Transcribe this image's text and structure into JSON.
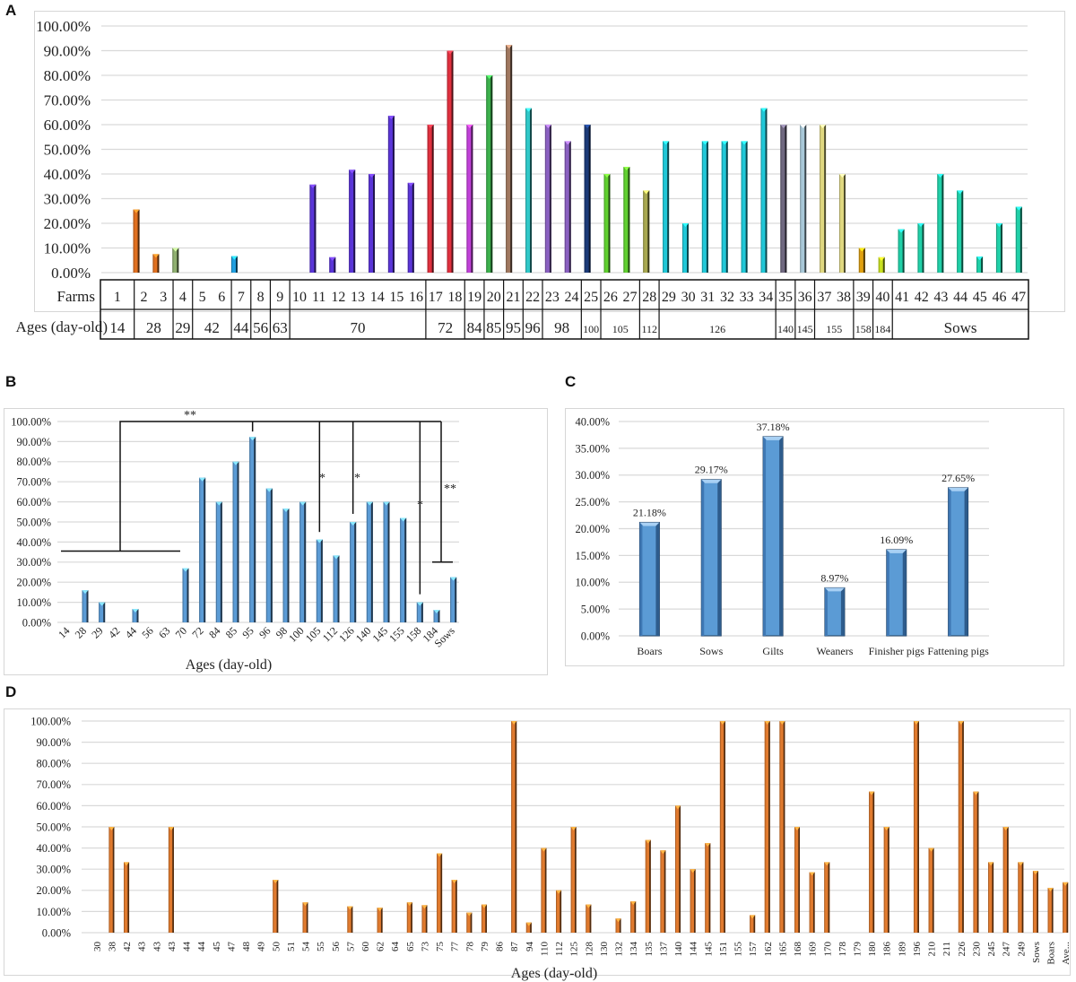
{
  "panels": {
    "A": {
      "letter": "A"
    },
    "B": {
      "letter": "B"
    },
    "C": {
      "letter": "C"
    },
    "D": {
      "letter": "D"
    }
  },
  "chart_data": [
    {
      "id": "A",
      "type": "bar",
      "title": "",
      "ylabel": "",
      "ylim": [
        0,
        100
      ],
      "yticks": [
        "0.00%",
        "10.00%",
        "20.00%",
        "30.00%",
        "40.00%",
        "50.00%",
        "60.00%",
        "70.00%",
        "80.00%",
        "90.00%",
        "100.00%"
      ],
      "grid": true,
      "table_row_labels": [
        "Farms",
        "Ages (day-old)"
      ],
      "categories": [
        "1",
        "2",
        "3",
        "4",
        "5",
        "6",
        "7",
        "8",
        "9",
        "10",
        "11",
        "12",
        "13",
        "14",
        "15",
        "16",
        "17",
        "18",
        "19",
        "20",
        "21",
        "22",
        "23",
        "24",
        "25",
        "26",
        "27",
        "28",
        "29",
        "30",
        "31",
        "32",
        "33",
        "34",
        "35",
        "36",
        "37",
        "38",
        "39",
        "40",
        "41",
        "42",
        "43",
        "44",
        "45",
        "46",
        "47"
      ],
      "values": [
        0,
        25.6,
        7.5,
        10,
        0,
        0,
        6.7,
        0,
        0,
        0,
        35.7,
        6.25,
        41.7,
        40,
        63.6,
        36.4,
        60,
        90,
        60,
        80,
        92.3,
        66.7,
        60,
        53.3,
        60,
        40,
        42.9,
        33.3,
        53.3,
        20,
        53.3,
        53.3,
        53.3,
        66.7,
        60,
        60,
        60,
        40,
        10,
        6.25,
        17.6,
        20,
        40,
        33.3,
        6.5,
        20,
        26.7
      ],
      "age_groups": [
        {
          "label": "14",
          "farms": [
            1,
            1
          ],
          "color": "#e07020"
        },
        {
          "label": "28",
          "farms": [
            2,
            3
          ],
          "color": "#e07020"
        },
        {
          "label": "29",
          "farms": [
            4,
            4
          ],
          "color": "#8fb070"
        },
        {
          "label": "42",
          "farms": [
            5,
            6
          ],
          "color": "#e07020"
        },
        {
          "label": "44",
          "farms": [
            7,
            7
          ],
          "color": "#1f9fe0"
        },
        {
          "label": "56",
          "farms": [
            8,
            8
          ],
          "color": "#1f9fe0"
        },
        {
          "label": "63",
          "farms": [
            9,
            9
          ],
          "color": "#1f9fe0"
        },
        {
          "label": "70",
          "farms": [
            10,
            16
          ],
          "color": "#5a35d8"
        },
        {
          "label": "72",
          "farms": [
            17,
            18
          ],
          "color": "#e0303e"
        },
        {
          "label": "84",
          "farms": [
            19,
            19
          ],
          "color": "#c040d8"
        },
        {
          "label": "85",
          "farms": [
            20,
            20
          ],
          "color": "#3cb04c"
        },
        {
          "label": "95",
          "farms": [
            21,
            21
          ],
          "color": "#a07860"
        },
        {
          "label": "96",
          "farms": [
            22,
            22
          ],
          "color": "#30c8c8"
        },
        {
          "label": "98",
          "farms": [
            23,
            24
          ],
          "color": "#8a60c0"
        },
        {
          "label": "100",
          "farms": [
            25,
            25
          ],
          "color": "#1c3a78"
        },
        {
          "label": "105",
          "farms": [
            26,
            27
          ],
          "color": "#60d030"
        },
        {
          "label": "112",
          "farms": [
            28,
            28
          ],
          "color": "#a8a850"
        },
        {
          "label": "126",
          "farms": [
            29,
            34
          ],
          "color": "#20c8d8"
        },
        {
          "label": "140",
          "farms": [
            35,
            35
          ],
          "color": "#706880"
        },
        {
          "label": "145",
          "farms": [
            36,
            36
          ],
          "color": "#a8c8d8"
        },
        {
          "label": "155",
          "farms": [
            37,
            38
          ],
          "color": "#e0d880"
        },
        {
          "label": "158",
          "farms": [
            39,
            39
          ],
          "color": "#e0a010"
        },
        {
          "label": "184",
          "farms": [
            40,
            40
          ],
          "color": "#c8e020"
        },
        {
          "label": "Sows",
          "farms": [
            41,
            47
          ],
          "color": "#20d0a8"
        }
      ]
    },
    {
      "id": "B",
      "type": "bar",
      "title": "",
      "xlabel": "Ages (day-old)",
      "ylabel": "",
      "ylim": [
        0,
        100
      ],
      "yticks": [
        "0.00%",
        "10.00%",
        "20.00%",
        "30.00%",
        "40.00%",
        "50.00%",
        "60.00%",
        "70.00%",
        "80.00%",
        "90.00%",
        "100.00%"
      ],
      "grid": true,
      "color": "#5b9bd5",
      "categories": [
        "14",
        "28",
        "29",
        "42",
        "44",
        "56",
        "63",
        "70",
        "72",
        "84",
        "85",
        "95",
        "96",
        "98",
        "100",
        "105",
        "112",
        "126",
        "140",
        "145",
        "155",
        "158",
        "184",
        "Sows"
      ],
      "values": [
        0,
        16,
        10,
        0,
        6.7,
        0,
        0,
        27,
        72,
        60,
        80,
        92.3,
        66.7,
        56.7,
        60,
        41.3,
        33.3,
        50,
        60,
        60,
        52,
        10,
        6.25,
        22.5
      ],
      "annotations": [
        {
          "text": "**",
          "note": "14-70 group vs 95"
        },
        {
          "text": "*",
          "note": "95 vs 105"
        },
        {
          "text": "*",
          "note": "95 vs 126"
        },
        {
          "text": "*",
          "note": "95 vs 158"
        },
        {
          "text": "**",
          "note": "95 vs Sows"
        }
      ]
    },
    {
      "id": "C",
      "type": "bar",
      "title": "",
      "ylim": [
        0,
        40
      ],
      "yticks": [
        "0.00%",
        "5.00%",
        "10.00%",
        "15.00%",
        "20.00%",
        "25.00%",
        "30.00%",
        "35.00%",
        "40.00%"
      ],
      "grid": true,
      "color": "#5b9bd5",
      "categories": [
        "Boars",
        "Sows",
        "Gilts",
        "Weaners",
        "Finisher pigs",
        "Fattening pigs"
      ],
      "values": [
        21.18,
        29.17,
        37.18,
        8.97,
        16.09,
        27.65
      ],
      "data_labels": [
        "21.18%",
        "29.17%",
        "37.18%",
        "8.97%",
        "16.09%",
        "27.65%"
      ]
    },
    {
      "id": "D",
      "type": "bar",
      "title": "",
      "xlabel": "Ages (day-old)",
      "ylim": [
        0,
        100
      ],
      "yticks": [
        "0.00%",
        "10.00%",
        "20.00%",
        "30.00%",
        "40.00%",
        "50.00%",
        "60.00%",
        "70.00%",
        "80.00%",
        "90.00%",
        "100.00%"
      ],
      "grid": true,
      "color": "#e07a2e",
      "categories": [
        "30",
        "38",
        "42",
        "43",
        "43",
        "43",
        "44",
        "44",
        "45",
        "47",
        "48",
        "49",
        "50",
        "51",
        "54",
        "55",
        "56",
        "57",
        "60",
        "62",
        "64",
        "65",
        "73",
        "75",
        "77",
        "78",
        "79",
        "86",
        "87",
        "94",
        "110",
        "112",
        "125",
        "128",
        "130",
        "132",
        "134",
        "135",
        "137",
        "140",
        "144",
        "145",
        "151",
        "155",
        "157",
        "162",
        "165",
        "168",
        "169",
        "170",
        "178",
        "179",
        "180",
        "186",
        "189",
        "196",
        "210",
        "211",
        "226",
        "230",
        "245",
        "247",
        "249",
        "Sows",
        "Boars",
        "Ave..."
      ],
      "values": [
        0,
        50,
        33.3,
        0,
        0,
        50,
        0,
        0,
        0,
        0,
        0,
        0,
        25,
        0,
        14.3,
        0,
        0,
        12.5,
        0,
        11.8,
        0,
        14.3,
        13,
        37.5,
        25,
        9.5,
        13.3,
        0,
        100,
        4.8,
        40,
        20,
        50,
        13.3,
        0,
        6.7,
        14.8,
        43.8,
        38.9,
        60,
        30,
        42.3,
        100,
        0,
        8.3,
        100,
        100,
        50,
        28.6,
        33.3,
        0,
        0,
        66.7,
        50,
        0,
        100,
        40,
        0,
        100,
        66.7,
        33.3,
        50,
        33.3,
        29.2,
        21.2,
        23.8
      ]
    }
  ]
}
